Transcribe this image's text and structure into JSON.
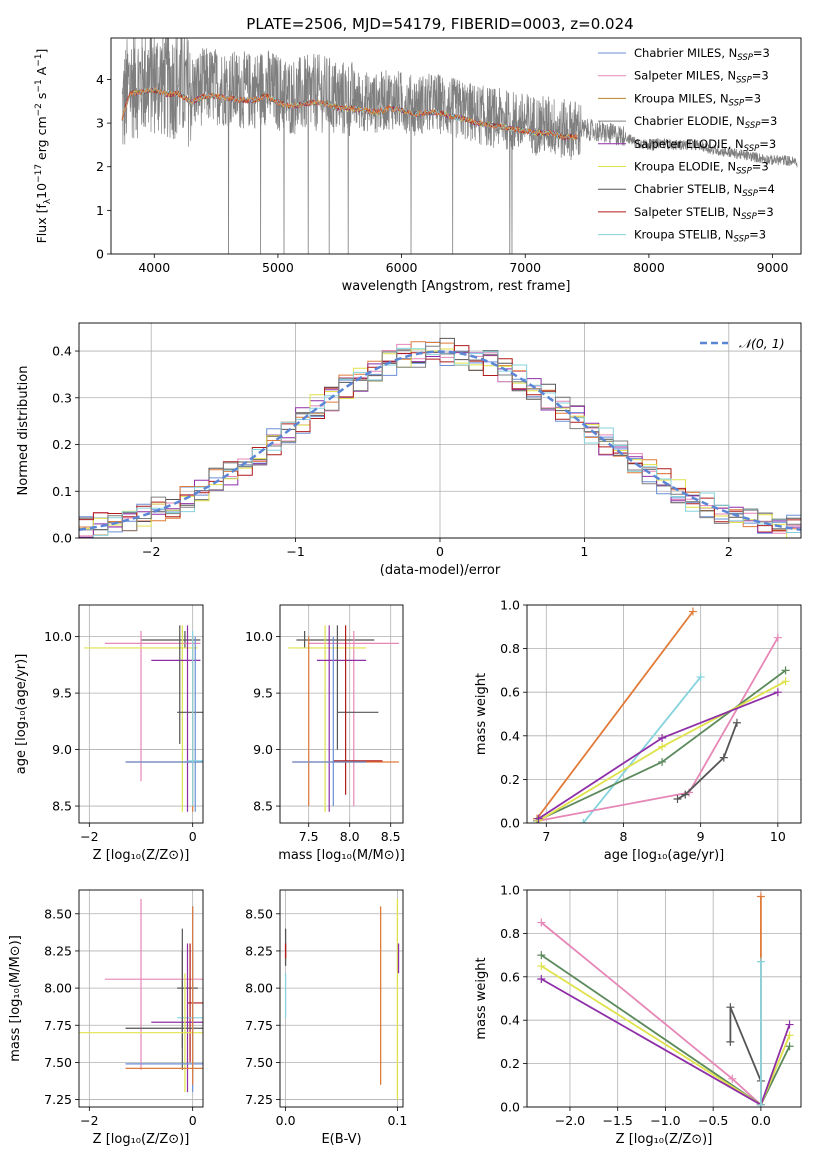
{
  "figure_title": "PLATE=2506, MJD=54179, FIBERID=0003, z=0.024",
  "colors": {
    "Chabrier MILES": "#6a8fd6",
    "Salpeter MILES": "#e687b7",
    "Kroupa MILES": "#b8862b",
    "Chabrier ELODIE": "#7f7f7f",
    "Salpeter ELODIE": "#8e2fa8",
    "Kroupa ELODIE": "#dfe24a",
    "Chabrier STELIB": "#555555",
    "Salpeter STELIB": "#b01b1b",
    "Kroupa STELIB": "#86d3de",
    "fit_orange": "#e07b39",
    "fit_green": "#5c8a5c",
    "normal": "#5b86d6"
  },
  "chart_data": [
    {
      "id": "spectrum",
      "type": "line",
      "xlabel": "wavelength [Angstrom, rest frame]",
      "ylabel_parts": [
        "Flux [f",
        "λ",
        "10",
        "−17",
        " erg cm",
        "−2",
        " s",
        "−1",
        " A",
        "−1",
        "]"
      ],
      "xlim": [
        3650,
        9230
      ],
      "ylim": [
        0,
        4.95
      ],
      "xticks": [
        4000,
        5000,
        6000,
        7000,
        8000,
        9000
      ],
      "yticks": [
        0,
        1,
        2,
        3,
        4
      ],
      "data_range": [
        3740,
        9200
      ],
      "model_range": [
        3740,
        7420
      ],
      "legend": [
        {
          "label": "Chabrier MILES, N",
          "sub": "SSP",
          "tail": "=3",
          "key": "Chabrier MILES"
        },
        {
          "label": "Salpeter MILES, N",
          "sub": "SSP",
          "tail": "=3",
          "key": "Salpeter MILES"
        },
        {
          "label": "Kroupa MILES, N",
          "sub": "SSP",
          "tail": "=3",
          "key": "Kroupa MILES"
        },
        {
          "label": "Chabrier ELODIE, N",
          "sub": "SSP",
          "tail": "=3",
          "key": "Chabrier ELODIE"
        },
        {
          "label": "Salpeter ELODIE, N",
          "sub": "SSP",
          "tail": "=3",
          "key": "Salpeter ELODIE"
        },
        {
          "label": "Kroupa ELODIE, N",
          "sub": "SSP",
          "tail": "=3",
          "key": "Kroupa ELODIE"
        },
        {
          "label": "Chabrier STELIB, N",
          "sub": "SSP",
          "tail": "=4",
          "key": "Chabrier STELIB"
        },
        {
          "label": "Salpeter STELIB, N",
          "sub": "SSP",
          "tail": "=3",
          "key": "Salpeter STELIB"
        },
        {
          "label": "Kroupa STELIB, N",
          "sub": "SSP",
          "tail": "=3",
          "key": "Kroupa STELIB"
        }
      ],
      "continuum": [
        [
          3740,
          3.3
        ],
        [
          3800,
          3.9
        ],
        [
          3900,
          3.95
        ],
        [
          4000,
          4.0
        ],
        [
          4100,
          3.9
        ],
        [
          4200,
          3.9
        ],
        [
          4300,
          3.7
        ],
        [
          4400,
          3.85
        ],
        [
          4500,
          3.85
        ],
        [
          4600,
          3.8
        ],
        [
          4700,
          3.75
        ],
        [
          4800,
          3.75
        ],
        [
          4900,
          3.85
        ],
        [
          5000,
          3.7
        ],
        [
          5100,
          3.6
        ],
        [
          5200,
          3.65
        ],
        [
          5300,
          3.7
        ],
        [
          5400,
          3.65
        ],
        [
          5500,
          3.55
        ],
        [
          5600,
          3.55
        ],
        [
          5700,
          3.5
        ],
        [
          5800,
          3.45
        ],
        [
          5900,
          3.55
        ],
        [
          6000,
          3.5
        ],
        [
          6100,
          3.4
        ],
        [
          6200,
          3.45
        ],
        [
          6300,
          3.45
        ],
        [
          6400,
          3.35
        ],
        [
          6500,
          3.3
        ],
        [
          6600,
          3.2
        ],
        [
          6700,
          3.15
        ],
        [
          6800,
          3.1
        ],
        [
          6900,
          3.05
        ],
        [
          7000,
          3.0
        ],
        [
          7100,
          2.95
        ],
        [
          7200,
          2.95
        ],
        [
          7300,
          2.85
        ],
        [
          7400,
          2.85
        ],
        [
          7500,
          2.85
        ],
        [
          7600,
          2.8
        ],
        [
          7700,
          2.75
        ],
        [
          7800,
          2.7
        ],
        [
          7900,
          2.55
        ],
        [
          8000,
          2.5
        ],
        [
          8100,
          2.55
        ],
        [
          8200,
          2.5
        ],
        [
          8300,
          2.5
        ],
        [
          8400,
          2.5
        ],
        [
          8500,
          2.4
        ],
        [
          8600,
          2.35
        ],
        [
          8700,
          2.3
        ],
        [
          8800,
          2.25
        ],
        [
          8900,
          2.2
        ],
        [
          9000,
          2.15
        ],
        [
          9100,
          2.15
        ],
        [
          9200,
          2.1
        ]
      ]
    },
    {
      "id": "residuals",
      "type": "bar",
      "xlabel": "(data-model)/error",
      "ylabel": "Normed distribution",
      "xlim": [
        -2.5,
        2.5
      ],
      "ylim": [
        0,
        0.46
      ],
      "xticks": [
        -2,
        -1,
        0,
        1,
        2
      ],
      "yticks": [
        0.0,
        0.1,
        0.2,
        0.3,
        0.4
      ],
      "legend_label": "𝒩(0, 1)",
      "bin_width": 0.1,
      "bin_start": -2.5
    },
    {
      "id": "age-Z",
      "type": "scatter",
      "xlabel": "Z [log₁₀(Z/Z⊙)]",
      "ylabel": "age  [log₁₀(age/yr)]",
      "xlim": [
        -2.2,
        0.2
      ],
      "ylim": [
        8.35,
        10.28
      ],
      "xticks": [
        -2,
        0
      ],
      "yticks": [
        8.5,
        9.0,
        9.5,
        10.0
      ]
    },
    {
      "id": "age-mass",
      "type": "scatter",
      "xlabel": "mass [log₁₀(M/M⊙)]",
      "ylabel": "",
      "xlim": [
        7.15,
        8.65
      ],
      "ylim": [
        8.35,
        10.28
      ],
      "xticks": [
        7.5,
        8.0,
        8.5
      ],
      "yticks": [
        8.5,
        9.0,
        9.5,
        10.0
      ]
    },
    {
      "id": "weight-age",
      "type": "line",
      "xlabel": "age  [log₁₀(age/yr)]",
      "ylabel": "mass weight",
      "xlim": [
        6.75,
        10.3
      ],
      "ylim": [
        0,
        1.0
      ],
      "xticks": [
        7,
        8,
        9,
        10
      ],
      "yticks": [
        0.0,
        0.2,
        0.4,
        0.6,
        0.8,
        1.0
      ]
    },
    {
      "id": "mass-Z",
      "type": "scatter",
      "xlabel": "Z [log₁₀(Z/Z⊙)]",
      "ylabel": "mass [log₁₀(M/M⊙)]",
      "xlim": [
        -2.2,
        0.2
      ],
      "ylim": [
        7.2,
        8.66
      ],
      "xticks": [
        -2,
        0
      ],
      "yticks": [
        7.25,
        7.5,
        7.75,
        8.0,
        8.25,
        8.5
      ]
    },
    {
      "id": "mass-EBV",
      "type": "scatter",
      "xlabel": "E(B-V)",
      "ylabel": "",
      "xlim": [
        -0.005,
        0.105
      ],
      "ylim": [
        7.2,
        8.66
      ],
      "xticks": [
        0.0,
        0.1
      ],
      "yticks": [
        7.25,
        7.5,
        7.75,
        8.0,
        8.25,
        8.5
      ]
    },
    {
      "id": "weight-Z",
      "type": "line",
      "xlabel": "Z [log₁₀(Z/Z⊙)]",
      "ylabel": "mass weight",
      "xlim": [
        -2.45,
        0.42
      ],
      "ylim": [
        0,
        1.0
      ],
      "xticks": [
        -2.0,
        -1.5,
        -1.0,
        -0.5,
        0.0
      ],
      "yticks": [
        0.0,
        0.2,
        0.4,
        0.6,
        0.8,
        1.0
      ]
    }
  ],
  "weight_age_series": [
    {
      "key": "fit_orange",
      "pts": [
        [
          6.88,
          0.02
        ],
        [
          8.9,
          0.97
        ]
      ]
    },
    {
      "key": "Kroupa STELIB",
      "pts": [
        [
          7.48,
          0.0
        ],
        [
          9.0,
          0.67
        ]
      ]
    },
    {
      "key": "Salpeter MILES",
      "pts": [
        [
          6.9,
          0.01
        ],
        [
          8.85,
          0.14
        ],
        [
          10.0,
          0.85
        ]
      ]
    },
    {
      "key": "fit_green",
      "pts": [
        [
          6.88,
          0.01
        ],
        [
          8.5,
          0.28
        ],
        [
          10.1,
          0.7
        ]
      ]
    },
    {
      "key": "Kroupa ELODIE",
      "pts": [
        [
          6.9,
          0.01
        ],
        [
          8.5,
          0.35
        ],
        [
          10.1,
          0.65
        ]
      ]
    },
    {
      "key": "Salpeter ELODIE",
      "pts": [
        [
          6.9,
          0.02
        ],
        [
          8.5,
          0.39
        ],
        [
          10.0,
          0.6
        ]
      ]
    },
    {
      "key": "Chabrier STELIB",
      "pts": [
        [
          8.7,
          0.11
        ],
        [
          8.8,
          0.13
        ],
        [
          9.3,
          0.3
        ],
        [
          9.47,
          0.46
        ]
      ]
    }
  ],
  "weight_Z_series": [
    {
      "key": "Salpeter MILES",
      "pts": [
        [
          -2.3,
          0.85
        ],
        [
          -0.3,
          0.13
        ],
        [
          0.0,
          0.01
        ]
      ]
    },
    {
      "key": "fit_green",
      "pts": [
        [
          -2.3,
          0.7
        ],
        [
          0.0,
          0.01
        ],
        [
          0.3,
          0.28
        ]
      ]
    },
    {
      "key": "Kroupa ELODIE",
      "pts": [
        [
          -2.3,
          0.65
        ],
        [
          0.0,
          0.01
        ],
        [
          0.3,
          0.33
        ]
      ]
    },
    {
      "key": "Salpeter ELODIE",
      "pts": [
        [
          -2.3,
          0.59
        ],
        [
          0.0,
          0.01
        ],
        [
          0.3,
          0.38
        ]
      ]
    },
    {
      "key": "Chabrier STELIB",
      "pts": [
        [
          -0.32,
          0.3
        ],
        [
          -0.32,
          0.46
        ],
        [
          0.0,
          0.12
        ],
        [
          0.0,
          0.01
        ]
      ]
    },
    {
      "key": "fit_orange",
      "pts": [
        [
          0.0,
          0.01
        ],
        [
          0.0,
          0.97
        ]
      ]
    },
    {
      "key": "Kroupa STELIB",
      "pts": [
        [
          0.0,
          0.01
        ],
        [
          0.0,
          0.67
        ]
      ]
    }
  ],
  "age_Z_errors": [
    {
      "key": "Chabrier STELIB",
      "x": [
        -1.0,
        0.15
      ],
      "y": 9.97,
      "yr": [
        9.9,
        10.05
      ],
      "xc": -0.15
    },
    {
      "key": "Salpeter MILES",
      "x": [
        -1.7,
        0.15
      ],
      "y": 9.94,
      "yr": [
        8.72,
        10.05
      ],
      "xc": -1.0
    },
    {
      "key": "Kroupa ELODIE",
      "x": [
        -2.1,
        0.1
      ],
      "y": 9.9,
      "yr": [
        8.45,
        10.1
      ],
      "xc": -0.2
    },
    {
      "key": "Salpeter ELODIE",
      "x": [
        -0.8,
        0.15
      ],
      "y": 9.79,
      "yr": [
        8.45,
        10.1
      ],
      "xc": -0.1
    },
    {
      "key": "Chabrier STELIB",
      "x": [
        -0.3,
        0.25
      ],
      "y": 9.33,
      "yr": [
        9.05,
        10.1
      ],
      "xc": -0.25
    },
    {
      "key": "fit_orange",
      "x": [
        -1.3,
        0.3
      ],
      "y": 8.89,
      "yr": [
        8.45,
        10.0
      ],
      "xc": 0.0
    },
    {
      "key": "Chabrier MILES",
      "x": [
        -1.3,
        0.2
      ],
      "y": 8.89,
      "yr": [
        8.45,
        10.0
      ],
      "xc": 0.05
    },
    {
      "key": "Kroupa STELIB",
      "x": [
        -0.1,
        0.2
      ],
      "y": 8.9,
      "yr": [
        8.5,
        10.05
      ],
      "xc": 0.0
    }
  ],
  "age_mass_errors": [
    {
      "key": "Chabrier STELIB",
      "x": [
        7.35,
        8.3
      ],
      "y": 9.97,
      "yr": [
        9.9,
        10.05
      ],
      "xc": 7.45
    },
    {
      "key": "Salpeter MILES",
      "x": [
        7.5,
        8.6
      ],
      "y": 9.94,
      "yr": [
        8.5,
        10.05
      ],
      "xc": 8.05
    },
    {
      "key": "Kroupa ELODIE",
      "x": [
        7.25,
        8.2
      ],
      "y": 9.9,
      "yr": [
        8.45,
        10.1
      ],
      "xc": 7.7
    },
    {
      "key": "Salpeter ELODIE",
      "x": [
        7.6,
        8.2
      ],
      "y": 9.79,
      "yr": [
        8.45,
        10.1
      ],
      "xc": 7.75
    },
    {
      "key": "Chabrier STELIB",
      "x": [
        7.85,
        8.35
      ],
      "y": 9.33,
      "yr": [
        9.0,
        10.1
      ],
      "xc": 7.85
    },
    {
      "key": "Salpeter STELIB",
      "x": [
        7.8,
        8.4
      ],
      "y": 8.9,
      "yr": [
        8.6,
        10.1
      ],
      "xc": 7.95
    },
    {
      "key": "fit_orange",
      "x": [
        7.3,
        8.6
      ],
      "y": 8.89,
      "yr": [
        8.5,
        10.0
      ],
      "xc": 7.5
    },
    {
      "key": "Chabrier MILES",
      "x": [
        7.3,
        8.2
      ],
      "y": 8.89,
      "yr": [
        8.5,
        10.0
      ],
      "xc": 7.8
    }
  ],
  "mass_Z_errors": [
    {
      "key": "Salpeter MILES",
      "x": [
        -1.7,
        0.2
      ],
      "y": 8.06,
      "yr": [
        7.45,
        8.6
      ],
      "xc": -1.0
    },
    {
      "key": "Chabrier STELIB",
      "x": [
        -0.3,
        0.1
      ],
      "y": 8.0,
      "yr": [
        7.6,
        8.4
      ],
      "xc": -0.2
    },
    {
      "key": "Salpeter STELIB",
      "x": [
        -0.1,
        0.25
      ],
      "y": 7.9,
      "yr": [
        7.5,
        8.3
      ],
      "xc": -0.05
    },
    {
      "key": "Kroupa STELIB",
      "x": [
        -0.3,
        0.25
      ],
      "y": 7.8,
      "yr": [
        7.4,
        8.2
      ],
      "xc": 0.0
    },
    {
      "key": "Salpeter ELODIE",
      "x": [
        -0.8,
        0.25
      ],
      "y": 7.77,
      "yr": [
        7.3,
        8.3
      ],
      "xc": -0.1
    },
    {
      "key": "Chabrier STELIB",
      "x": [
        -1.3,
        0.2
      ],
      "y": 7.73,
      "yr": [
        7.45,
        8.25
      ],
      "xc": -0.2
    },
    {
      "key": "Kroupa ELODIE",
      "x": [
        -2.2,
        0.3
      ],
      "y": 7.7,
      "yr": [
        7.3,
        8.1
      ],
      "xc": -0.15
    },
    {
      "key": "Chabrier MILES",
      "x": [
        -1.3,
        0.2
      ],
      "y": 7.49,
      "yr": [
        7.3,
        8.55
      ],
      "xc": 0.0
    },
    {
      "key": "fit_orange",
      "x": [
        -1.3,
        0.3
      ],
      "y": 7.46,
      "yr": [
        7.35,
        8.55
      ],
      "xc": 0.0
    }
  ],
  "mass_EBV_errors": [
    {
      "key": "Chabrier STELIB",
      "x": 0.0,
      "yr": [
        8.15,
        8.4
      ]
    },
    {
      "key": "Salpeter STELIB",
      "x": 0.0,
      "yr": [
        8.2,
        8.3
      ]
    },
    {
      "key": "Kroupa STELIB",
      "x": 0.0,
      "yr": [
        7.8,
        8.1
      ]
    },
    {
      "key": "fit_orange",
      "x": 0.085,
      "yr": [
        7.35,
        8.55
      ]
    },
    {
      "key": "Kroupa ELODIE",
      "x": 0.1,
      "yr": [
        7.25,
        8.6
      ]
    },
    {
      "key": "Salpeter ELODIE",
      "x": 0.101,
      "yr": [
        8.1,
        8.3
      ]
    }
  ]
}
